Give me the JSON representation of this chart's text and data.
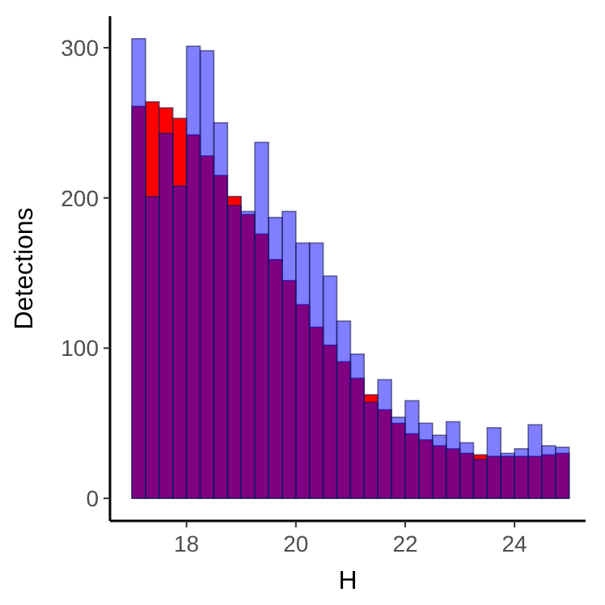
{
  "chart_data": {
    "type": "histogram",
    "xlabel": "H",
    "ylabel": "Detections",
    "bins": [
      17,
      17.25,
      17.5,
      17.75,
      18,
      18.25,
      18.5,
      18.75,
      19,
      19.25,
      19.5,
      19.75,
      20,
      20.25,
      20.5,
      20.75,
      21,
      21.25,
      21.5,
      21.75,
      22,
      22.25,
      22.5,
      22.75,
      23,
      23.25,
      23.5,
      23.75,
      24,
      24.25,
      24.5,
      24.75,
      25
    ],
    "series": [
      {
        "color": "#ff0000",
        "values": [
          261,
          264,
          260,
          253,
          242,
          228,
          215,
          201,
          189,
          176,
          159,
          145,
          129,
          114,
          102,
          91,
          80,
          69,
          59,
          50,
          43,
          39,
          35,
          33,
          30,
          29,
          28,
          28,
          28,
          28,
          29,
          30
        ]
      },
      {
        "color": "#0000ff",
        "values": [
          306,
          201,
          243,
          208,
          301,
          298,
          250,
          195,
          191,
          237,
          187,
          191,
          170,
          170,
          148,
          118,
          96,
          64,
          79,
          54,
          65,
          50,
          42,
          51,
          37,
          26,
          47,
          30,
          33,
          49,
          35,
          34
        ]
      }
    ],
    "xlim": [
      16.6,
      25.3
    ],
    "ylim": [
      -15,
      321
    ],
    "xticks": [
      18,
      20,
      22,
      24
    ],
    "yticks": [
      0,
      100,
      200,
      300
    ],
    "grid": false
  }
}
